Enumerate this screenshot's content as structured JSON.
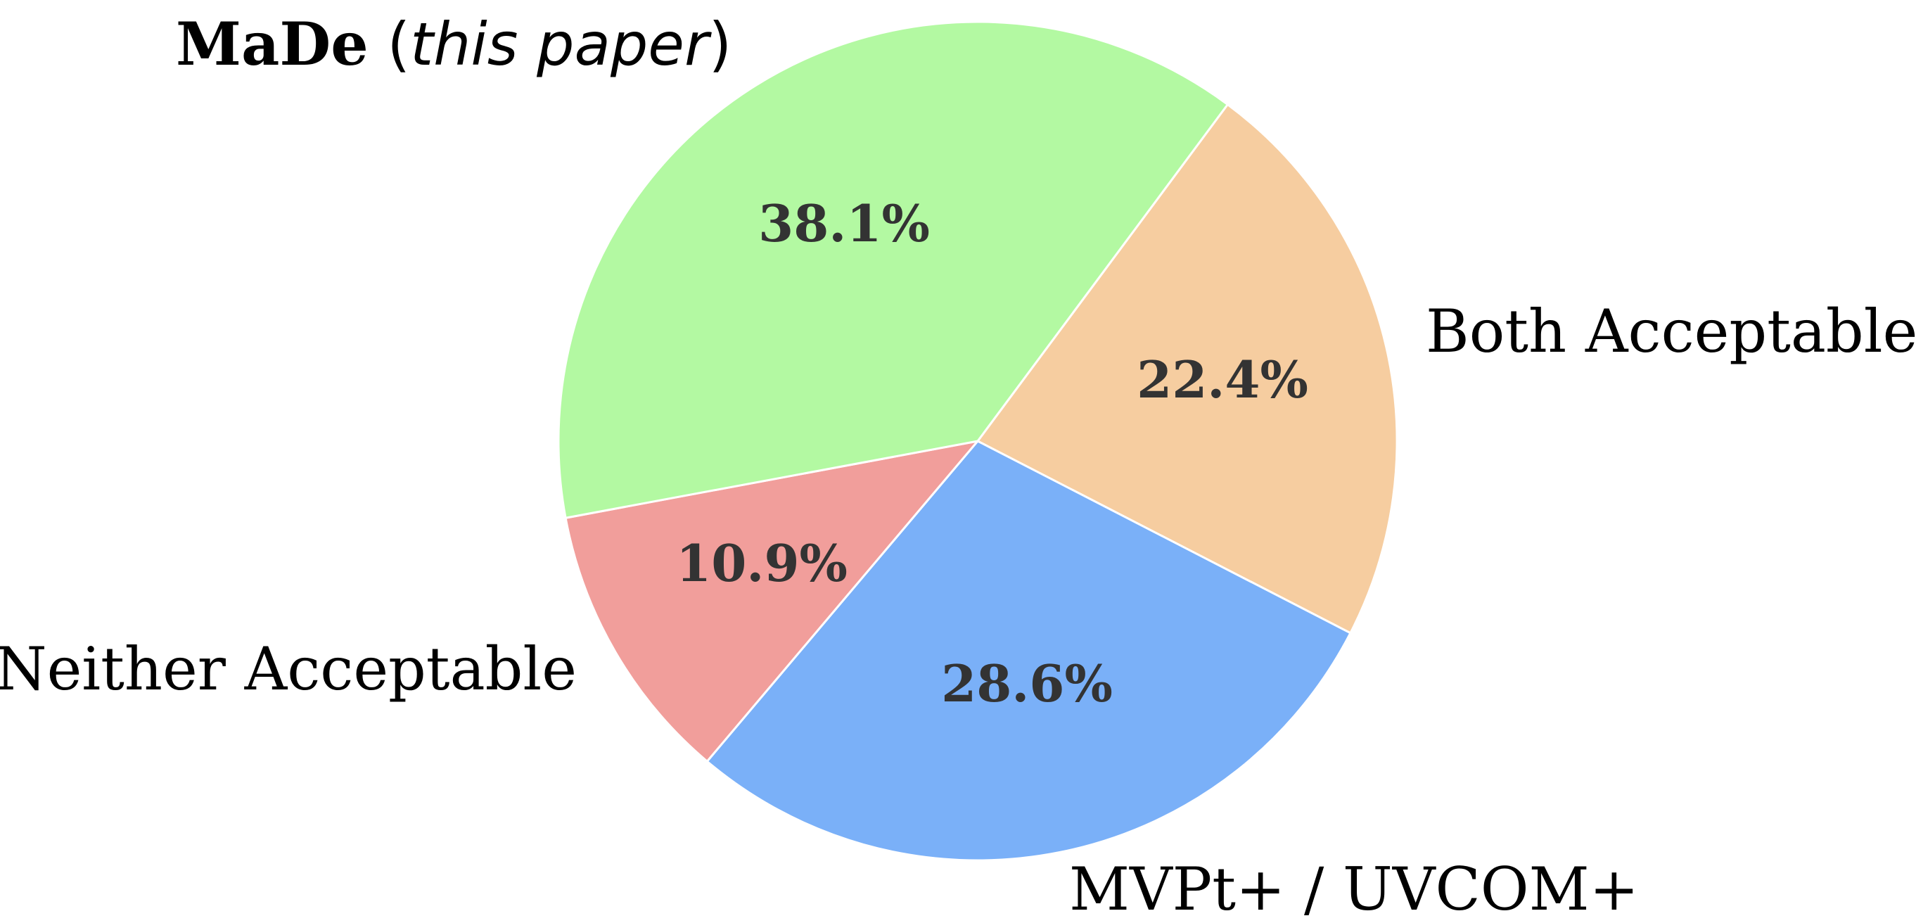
{
  "chart_data": {
    "type": "pie",
    "slices": [
      {
        "label": "Both Acceptable",
        "value": 22.4,
        "pct_text": "22.4%",
        "color": "#f6cda0"
      },
      {
        "label": "MVPt+ / UVCOM+",
        "value": 28.6,
        "pct_text": "28.6%",
        "color": "#7ab0f8"
      },
      {
        "label": "Neither Acceptable",
        "value": 10.9,
        "pct_text": "10.9%",
        "color": "#f19e9b"
      },
      {
        "label_parts": {
          "bold": "MaDe",
          "open": " (",
          "italic": "this paper",
          "close": ")"
        },
        "value": 38.1,
        "pct_text": "38.1%",
        "color": "#b3f9a2"
      }
    ],
    "start_angle_deg": 53.4,
    "direction": "clockwise",
    "edge_color": "#ffffff"
  }
}
